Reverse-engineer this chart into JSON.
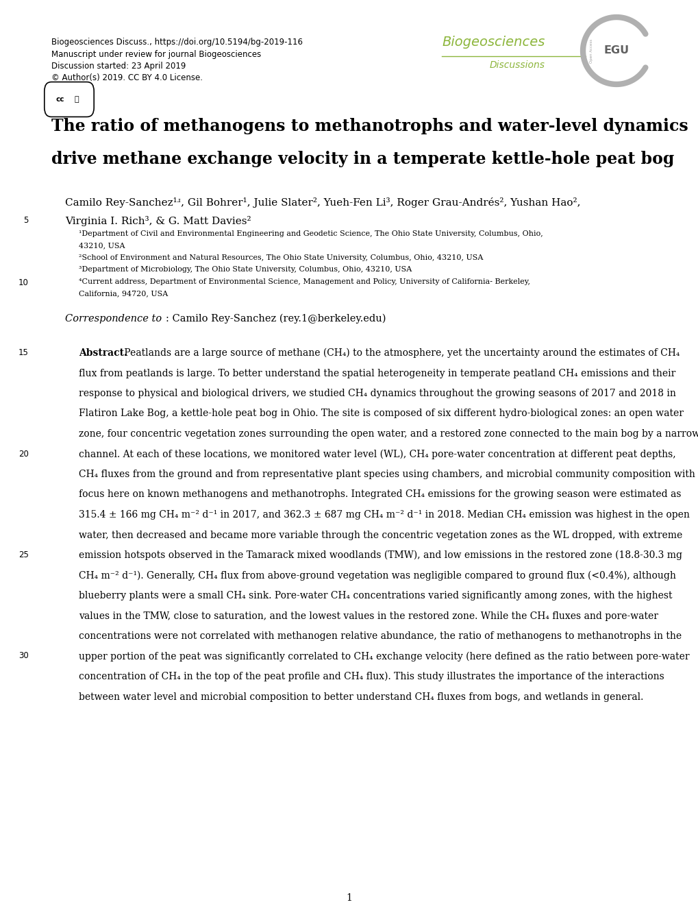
{
  "header_line1": "Biogeosciences Discuss., https://doi.org/10.5194/bg-2019-116",
  "header_line2": "Manuscript under review for journal Biogeosciences",
  "header_line3": "Discussion started: 23 April 2019",
  "header_line4": "© Author(s) 2019. CC BY 4.0 License.",
  "journal_name": "Biogeosciences",
  "journal_sub": "Discussions",
  "journal_color": "#8db63c",
  "title_line1": "The ratio of methanogens to methanotrophs and water-level dynamics",
  "title_line2": "drive methane exchange velocity in a temperate kettle-hole peat bog",
  "authors_line1": "Camilo Rey-Sanchez¹ʴ, Gil Bohrer¹, Julie Slater², Yueh-Fen Li³, Roger Grau-Andrés², Yushan Hao²,",
  "authors_line2": "Virginia I. Rich³, & G. Matt Davies²",
  "affil1": "¹Department of Civil and Environmental Engineering and Geodetic Science, The Ohio State University, Columbus, Ohio,",
  "affil1b": "43210, USA",
  "affil2": "²School of Environment and Natural Resources, The Ohio State University, Columbus, Ohio, 43210, USA",
  "affil3": "³Department of Microbiology, The Ohio State University, Columbus, Ohio, 43210, USA",
  "affil4": "⁴Current address, Department of Environmental Science, Management and Policy, University of California- Berkeley,",
  "affil4b": "California, 94720, USA",
  "correspondence": "Correspondence to",
  "correspondence2": ": Camilo Rey-Sanchez (rey.1@berkeley.edu)",
  "abstract_bold": "Abstract.",
  "abstract_lines": [
    "Peatlands are a large source of methane (CH₄) to the atmosphere, yet the uncertainty around the estimates of CH₄",
    "flux from peatlands is large. To better understand the spatial heterogeneity in temperate peatland CH₄ emissions and their",
    "response to physical and biological drivers, we studied CH₄ dynamics throughout the growing seasons of 2017 and 2018 in",
    "Flatiron Lake Bog, a kettle-hole peat bog in Ohio. The site is composed of six different hydro-biological zones: an open water",
    "zone, four concentric vegetation zones surrounding the open water, and a restored zone connected to the main bog by a narrow",
    "channel. At each of these locations, we monitored water level (WL), CH₄ pore-water concentration at different peat depths,",
    "CH₄ fluxes from the ground and from representative plant species using chambers, and microbial community composition with",
    "focus here on known methanogens and methanotrophs. Integrated CH₄ emissions for the growing season were estimated as",
    "315.4 ± 166 mg CH₄ m⁻² d⁻¹ in 2017, and 362.3 ± 687 mg CH₄ m⁻² d⁻¹ in 2018. Median CH₄ emission was highest in the open",
    "water, then decreased and became more variable through the concentric vegetation zones as the WL dropped, with extreme",
    "emission hotspots observed in the Tamarack mixed woodlands (TMW), and low emissions in the restored zone (18.8-30.3 mg",
    "CH₄ m⁻² d⁻¹). Generally, CH₄ flux from above-ground vegetation was negligible compared to ground flux (<0.4%), although",
    "blueberry plants were a small CH₄ sink. Pore-water CH₄ concentrations varied significantly among zones, with the highest",
    "values in the TMW, close to saturation, and the lowest values in the restored zone. While the CH₄ fluxes and pore-water",
    "concentrations were not correlated with methanogen relative abundance, the ratio of methanogens to methanotrophs in the",
    "upper portion of the peat was significantly correlated to CH₄ exchange velocity (here defined as the ratio between pore-water",
    "concentration of CH₄ in the top of the peat profile and CH₄ flux). This study illustrates the importance of the interactions",
    "between water level and microbial composition to better understand CH₄ fluxes from bogs, and wetlands in general."
  ],
  "page_number": "1",
  "background_color": "#ffffff",
  "text_color": "#000000",
  "page_width": 10.2,
  "page_height": 13.45
}
